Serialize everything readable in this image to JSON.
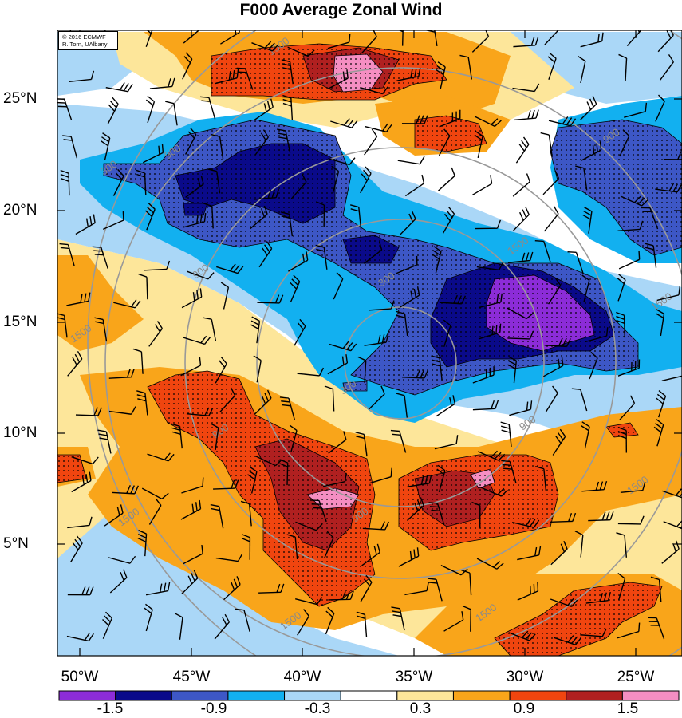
{
  "title": "F000 Average Zonal Wind",
  "credit": {
    "line1": "© 2016 ECMWF",
    "line2": "R. Torn, UAlbany"
  },
  "latitude_labels": [
    "25°N",
    "20°N",
    "15°N",
    "10°N",
    "5°N"
  ],
  "longitude_labels": [
    "50°W",
    "45°W",
    "40°W",
    "35°W",
    "30°W",
    "25°W"
  ],
  "colorbar": {
    "labels": [
      "-1.5",
      "-0.9",
      "-0.3",
      "0.3",
      "0.9",
      "1.5"
    ],
    "colors": [
      "#8c2cd8",
      "#0a0a8a",
      "#3d57c6",
      "#12b0f0",
      "#aad7f7",
      "#ffffff",
      "#fde69a",
      "#f9a51a",
      "#f0450f",
      "#b02020",
      "#f58ec2"
    ]
  },
  "contour_labels": [
    "1500",
    "900",
    "300",
    "900",
    "1500",
    "300",
    "900",
    "1500",
    "1500",
    "900",
    "1500",
    "1500",
    "900",
    "1500",
    "300",
    "1500",
    "900"
  ],
  "palette": {
    "purple": "#8c2cd8",
    "navy": "#0a0a8a",
    "blue": "#3d57c6",
    "cyan": "#12b0f0",
    "lightblue": "#aad7f7",
    "white": "#ffffff",
    "yellow": "#fde69a",
    "orange": "#f9a51a",
    "red": "#f0450f",
    "darkred": "#b02020",
    "pink": "#f58ec2",
    "contour": "#999999"
  }
}
